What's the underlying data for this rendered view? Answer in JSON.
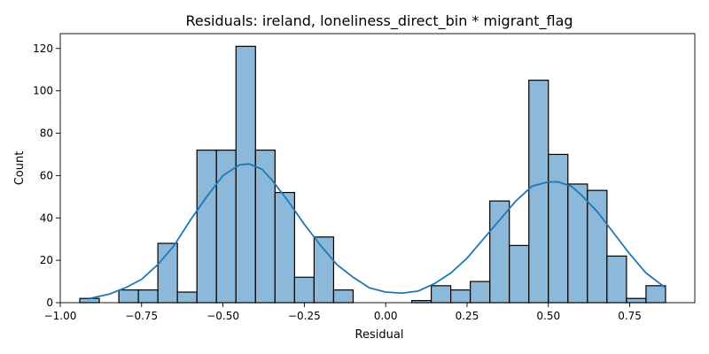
{
  "chart_data": {
    "type": "bar",
    "title": "Residuals: ireland, loneliness_direct_bin * migrant_flag",
    "xlabel": "Residual",
    "ylabel": "Count",
    "xlim": [
      -1.0,
      0.95
    ],
    "ylim": [
      0,
      127
    ],
    "grid": false,
    "bin_width": 0.06,
    "x_ticks": [
      "−1.00",
      "−0.75",
      "−0.50",
      "−0.25",
      "0.00",
      "0.25",
      "0.50",
      "0.75"
    ],
    "x_tick_values": [
      -1.0,
      -0.75,
      -0.5,
      -0.25,
      0.0,
      0.25,
      0.5,
      0.75
    ],
    "y_ticks": [
      "0",
      "20",
      "40",
      "60",
      "80",
      "100",
      "120"
    ],
    "y_tick_values": [
      0,
      20,
      40,
      60,
      80,
      100,
      120
    ],
    "bins": [
      {
        "x": -0.91,
        "count": 2
      },
      {
        "x": -0.85,
        "count": 0
      },
      {
        "x": -0.79,
        "count": 6
      },
      {
        "x": -0.73,
        "count": 6
      },
      {
        "x": -0.67,
        "count": 28
      },
      {
        "x": -0.61,
        "count": 5
      },
      {
        "x": -0.55,
        "count": 72
      },
      {
        "x": -0.49,
        "count": 72
      },
      {
        "x": -0.43,
        "count": 121
      },
      {
        "x": -0.37,
        "count": 72
      },
      {
        "x": -0.31,
        "count": 52
      },
      {
        "x": -0.25,
        "count": 12
      },
      {
        "x": -0.19,
        "count": 31
      },
      {
        "x": -0.13,
        "count": 6
      },
      {
        "x": -0.07,
        "count": 0
      },
      {
        "x": -0.01,
        "count": 0
      },
      {
        "x": 0.05,
        "count": 0
      },
      {
        "x": 0.11,
        "count": 1
      },
      {
        "x": 0.17,
        "count": 8
      },
      {
        "x": 0.23,
        "count": 6
      },
      {
        "x": 0.29,
        "count": 10
      },
      {
        "x": 0.35,
        "count": 48
      },
      {
        "x": 0.41,
        "count": 27
      },
      {
        "x": 0.47,
        "count": 105
      },
      {
        "x": 0.53,
        "count": 70
      },
      {
        "x": 0.59,
        "count": 56
      },
      {
        "x": 0.65,
        "count": 53
      },
      {
        "x": 0.71,
        "count": 22
      },
      {
        "x": 0.77,
        "count": 2
      },
      {
        "x": 0.83,
        "count": 8
      }
    ],
    "kde": {
      "x": [
        -0.91,
        -0.85,
        -0.8,
        -0.75,
        -0.7,
        -0.65,
        -0.6,
        -0.55,
        -0.5,
        -0.45,
        -0.42,
        -0.38,
        -0.35,
        -0.3,
        -0.25,
        -0.2,
        -0.15,
        -0.1,
        -0.05,
        0.0,
        0.05,
        0.1,
        0.15,
        0.2,
        0.25,
        0.3,
        0.35,
        0.4,
        0.45,
        0.5,
        0.53,
        0.57,
        0.6,
        0.65,
        0.7,
        0.75,
        0.8,
        0.86
      ],
      "y": [
        2,
        4,
        7,
        11,
        18,
        27,
        39,
        50,
        60,
        65,
        65.5,
        63,
        58,
        48,
        37,
        27,
        18,
        12,
        7,
        5,
        4.5,
        5.5,
        9,
        14,
        21,
        30,
        39,
        48,
        55,
        57,
        57,
        55,
        51,
        43,
        33,
        23,
        14,
        7
      ]
    },
    "colors": {
      "bar_fill": "#8cb8d9",
      "bar_edge": "#000000",
      "kde_line": "#1f77b4"
    }
  }
}
